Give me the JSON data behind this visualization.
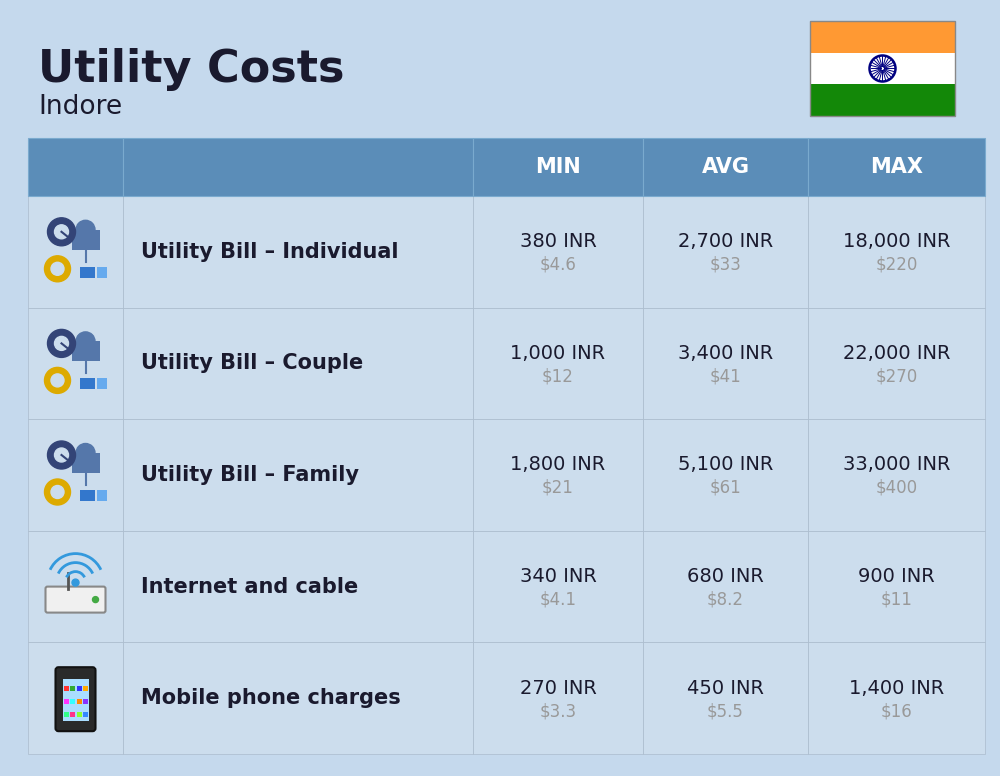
{
  "title": "Utility Costs",
  "subtitle": "Indore",
  "background_color": "#c5d9ed",
  "header_color": "#5b8db8",
  "header_text_color": "#ffffff",
  "row_color": "#ccdded",
  "text_color_dark": "#1a1a2e",
  "text_color_gray": "#999999",
  "col_headers": [
    "MIN",
    "AVG",
    "MAX"
  ],
  "rows": [
    {
      "label": "Utility Bill – Individual",
      "icon": "utility",
      "min_inr": "380 INR",
      "min_usd": "$4.6",
      "avg_inr": "2,700 INR",
      "avg_usd": "$33",
      "max_inr": "18,000 INR",
      "max_usd": "$220"
    },
    {
      "label": "Utility Bill – Couple",
      "icon": "utility",
      "min_inr": "1,000 INR",
      "min_usd": "$12",
      "avg_inr": "3,400 INR",
      "avg_usd": "$41",
      "max_inr": "22,000 INR",
      "max_usd": "$270"
    },
    {
      "label": "Utility Bill – Family",
      "icon": "utility",
      "min_inr": "1,800 INR",
      "min_usd": "$21",
      "avg_inr": "5,100 INR",
      "avg_usd": "$61",
      "max_inr": "33,000 INR",
      "max_usd": "$400"
    },
    {
      "label": "Internet and cable",
      "icon": "internet",
      "min_inr": "340 INR",
      "min_usd": "$4.1",
      "avg_inr": "680 INR",
      "avg_usd": "$8.2",
      "max_inr": "900 INR",
      "max_usd": "$11"
    },
    {
      "label": "Mobile phone charges",
      "icon": "mobile",
      "min_inr": "270 INR",
      "min_usd": "$3.3",
      "avg_inr": "450 INR",
      "avg_usd": "$5.5",
      "max_inr": "1,400 INR",
      "max_usd": "$16"
    }
  ],
  "flag_colors": [
    "#FF9933",
    "#ffffff",
    "#138808"
  ],
  "flag_ashoka_color": "#000080",
  "title_fontsize": 32,
  "subtitle_fontsize": 19,
  "header_fontsize": 15,
  "label_fontsize": 15,
  "value_fontsize": 14,
  "usd_fontsize": 12
}
